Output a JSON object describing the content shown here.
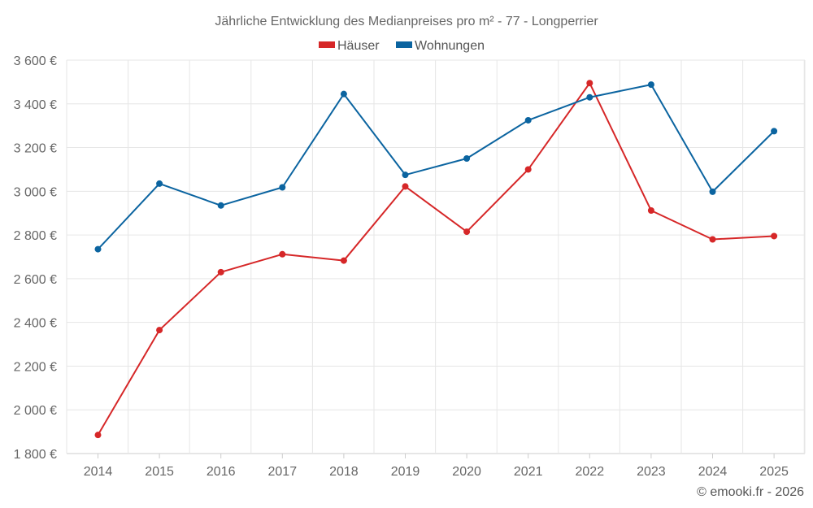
{
  "chart_data": {
    "type": "line",
    "title": "Jährliche Entwicklung des Medianpreises pro m² - 77 - Longperrier",
    "categories": [
      "2014",
      "2015",
      "2016",
      "2017",
      "2018",
      "2019",
      "2020",
      "2021",
      "2022",
      "2023",
      "2024",
      "2025"
    ],
    "series": [
      {
        "name": "Häuser",
        "color": "#d62728",
        "values": [
          1885,
          2365,
          2630,
          2712,
          2683,
          3022,
          2815,
          3100,
          3495,
          2912,
          2780,
          2795
        ]
      },
      {
        "name": "Wohnungen",
        "color": "#0b64a0",
        "values": [
          2735,
          3035,
          2935,
          3018,
          3445,
          3075,
          3150,
          3325,
          3430,
          3488,
          2998,
          3275
        ]
      }
    ],
    "ylim": [
      1800,
      3600
    ],
    "yticks": [
      1800,
      2000,
      2200,
      2400,
      2600,
      2800,
      3000,
      3200,
      3400,
      3600
    ],
    "ytick_labels": [
      "1 800 €",
      "2 000 €",
      "2 200 €",
      "2 400 €",
      "2 600 €",
      "2 800 €",
      "3 000 €",
      "3 200 €",
      "3 400 €",
      "3 600 €"
    ],
    "grid": true,
    "legend_position": "top-center"
  },
  "footer": {
    "copyright": "© emooki.fr - 2026"
  }
}
